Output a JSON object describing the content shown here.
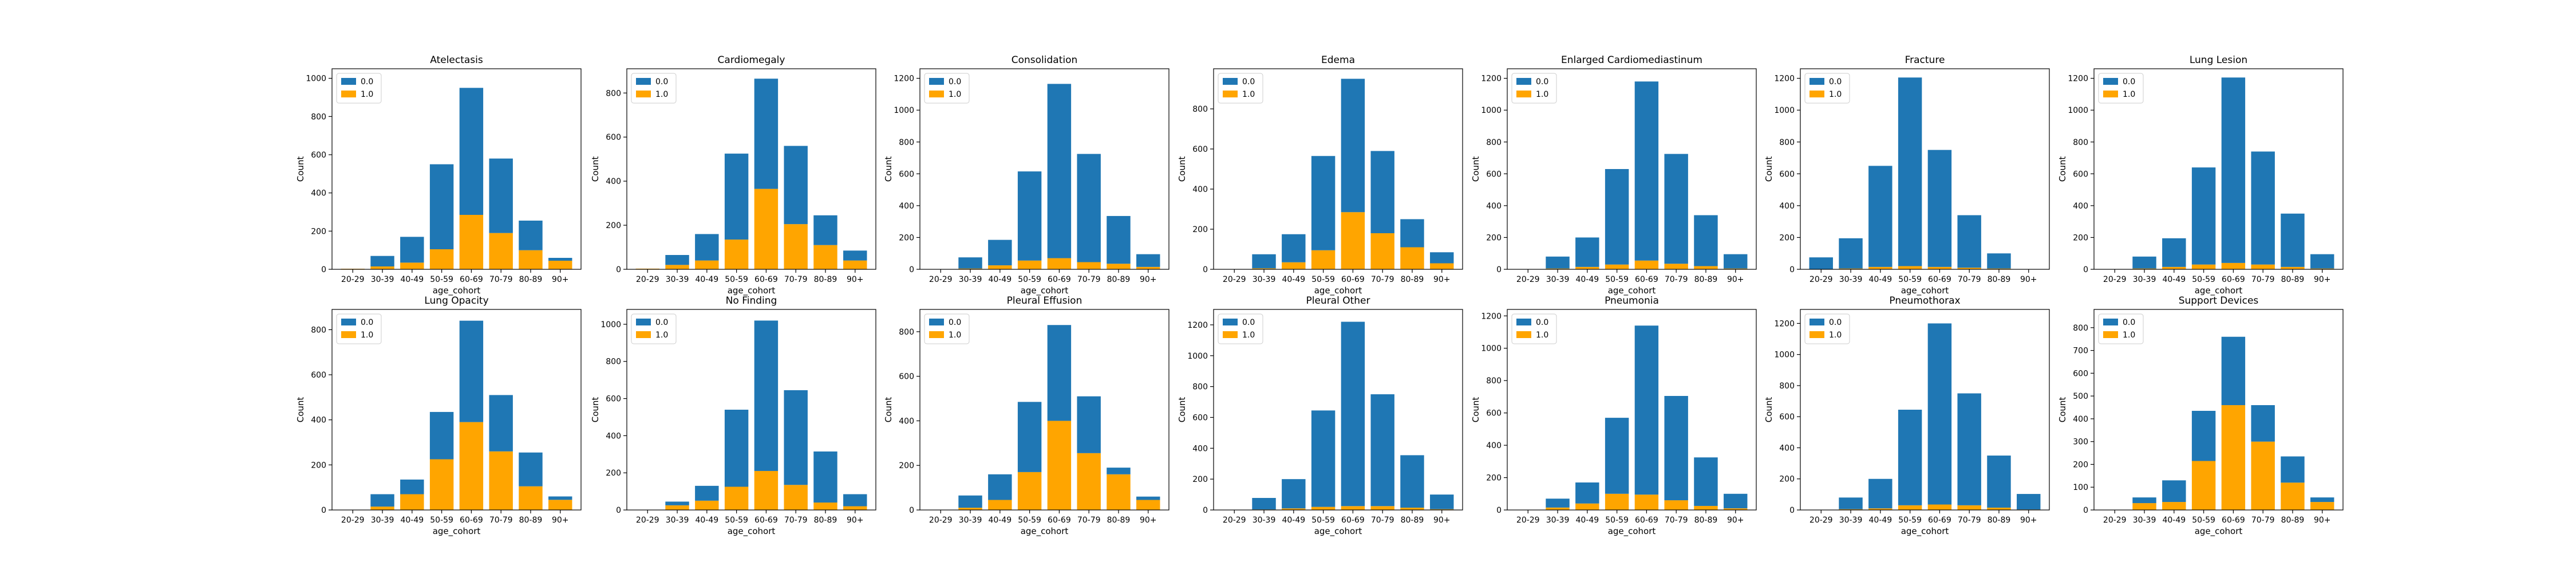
{
  "figure": {
    "xlabel": "age_cohort",
    "ylabel": "Count",
    "legend_labels": [
      "0.0",
      "1.0"
    ],
    "colors": {
      "0.0": "#1f77b4",
      "1.0": "#ffa500"
    }
  },
  "chart_data": [
    {
      "type": "bar",
      "stacked": true,
      "title": "Atelectasis",
      "xlabel": "age_cohort",
      "ylabel": "Count",
      "legend": "top-left",
      "categories": [
        "20-29",
        "30-39",
        "40-49",
        "50-59",
        "60-69",
        "70-79",
        "80-89",
        "90+"
      ],
      "yticks": [
        0,
        200,
        400,
        600,
        800,
        1000
      ],
      "ylim": [
        0,
        1050
      ],
      "series": [
        {
          "name": "0.0",
          "values": [
            0,
            55,
            135,
            445,
            665,
            390,
            155,
            15
          ]
        },
        {
          "name": "1.0",
          "values": [
            3,
            15,
            35,
            105,
            285,
            190,
            100,
            45
          ]
        }
      ]
    },
    {
      "type": "bar",
      "stacked": true,
      "title": "Cardiomegaly",
      "xlabel": "age_cohort",
      "ylabel": "Count",
      "legend": "top-left",
      "categories": [
        "20-29",
        "30-39",
        "40-49",
        "50-59",
        "60-69",
        "70-79",
        "80-89",
        "90+"
      ],
      "yticks": [
        0,
        200,
        400,
        600,
        800
      ],
      "ylim": [
        0,
        910
      ],
      "series": [
        {
          "name": "0.0",
          "values": [
            0,
            45,
            120,
            390,
            500,
            355,
            135,
            45
          ]
        },
        {
          "name": "1.0",
          "values": [
            3,
            20,
            40,
            135,
            365,
            205,
            110,
            40
          ]
        }
      ]
    },
    {
      "type": "bar",
      "stacked": true,
      "title": "Consolidation",
      "xlabel": "age_cohort",
      "ylabel": "Count",
      "legend": "top-left",
      "categories": [
        "20-29",
        "30-39",
        "40-49",
        "50-59",
        "60-69",
        "70-79",
        "80-89",
        "90+"
      ],
      "yticks": [
        0,
        200,
        400,
        600,
        800,
        1000,
        1200
      ],
      "ylim": [
        0,
        1260
      ],
      "series": [
        {
          "name": "0.0",
          "values": [
            0,
            70,
            160,
            560,
            1095,
            680,
            300,
            80
          ]
        },
        {
          "name": "1.0",
          "values": [
            0,
            5,
            25,
            55,
            70,
            45,
            35,
            15
          ]
        }
      ]
    },
    {
      "type": "bar",
      "stacked": true,
      "title": "Edema",
      "xlabel": "age_cohort",
      "ylabel": "Count",
      "legend": "top-left",
      "categories": [
        "20-29",
        "30-39",
        "40-49",
        "50-59",
        "60-69",
        "70-79",
        "80-89",
        "90+"
      ],
      "yticks": [
        0,
        200,
        400,
        600,
        800
      ],
      "ylim": [
        0,
        1000
      ],
      "series": [
        {
          "name": "0.0",
          "values": [
            0,
            70,
            140,
            470,
            665,
            410,
            140,
            55
          ]
        },
        {
          "name": "1.0",
          "values": [
            0,
            5,
            35,
            95,
            285,
            180,
            110,
            30
          ]
        }
      ]
    },
    {
      "type": "bar",
      "stacked": true,
      "title": "Enlarged Cardiomediastinum",
      "xlabel": "age_cohort",
      "ylabel": "Count",
      "legend": "top-left",
      "categories": [
        "20-29",
        "30-39",
        "40-49",
        "50-59",
        "60-69",
        "70-79",
        "80-89",
        "90+"
      ],
      "yticks": [
        0,
        200,
        400,
        600,
        800,
        1000,
        1200
      ],
      "ylim": [
        0,
        1260
      ],
      "series": [
        {
          "name": "0.0",
          "values": [
            0,
            75,
            185,
            600,
            1125,
            690,
            320,
            90
          ]
        },
        {
          "name": "1.0",
          "values": [
            0,
            5,
            15,
            30,
            55,
            35,
            20,
            5
          ]
        }
      ]
    },
    {
      "type": "bar",
      "stacked": true,
      "title": "Fracture",
      "xlabel": "age_cohort",
      "ylabel": "Count",
      "legend": "top-left",
      "categories": [
        "20-29",
        "30-39",
        "40-49",
        "50-59",
        "60-69",
        "70-79",
        "80-89",
        "90+"
      ],
      "yticks": [
        0,
        200,
        400,
        600,
        800,
        1000,
        1200
      ],
      "ylim": [
        0,
        1260
      ],
      "series": [
        {
          "name": "0.0",
          "values": [
            75,
            190,
            635,
            1185,
            735,
            330,
            95,
            0
          ]
        },
        {
          "name": "1.0",
          "values": [
            0,
            5,
            15,
            20,
            15,
            10,
            5,
            0
          ]
        }
      ]
    },
    {
      "type": "bar",
      "stacked": true,
      "title": "Lung Lesion",
      "xlabel": "age_cohort",
      "ylabel": "Count",
      "legend": "top-left",
      "categories": [
        "20-29",
        "30-39",
        "40-49",
        "50-59",
        "60-69",
        "70-79",
        "80-89",
        "90+"
      ],
      "yticks": [
        0,
        200,
        400,
        600,
        800,
        1000,
        1200
      ],
      "ylim": [
        0,
        1260
      ],
      "series": [
        {
          "name": "0.0",
          "values": [
            0,
            75,
            180,
            610,
            1165,
            710,
            335,
            90
          ]
        },
        {
          "name": "1.0",
          "values": [
            0,
            5,
            15,
            30,
            40,
            30,
            15,
            5
          ]
        }
      ]
    },
    {
      "type": "bar",
      "stacked": true,
      "title": "Lung Opacity",
      "xlabel": "age_cohort",
      "ylabel": "Count",
      "legend": "top-left",
      "categories": [
        "20-29",
        "30-39",
        "40-49",
        "50-59",
        "60-69",
        "70-79",
        "80-89",
        "90+"
      ],
      "yticks": [
        0,
        200,
        400,
        600,
        800
      ],
      "ylim": [
        0,
        890
      ],
      "series": [
        {
          "name": "0.0",
          "values": [
            0,
            55,
            65,
            210,
            450,
            250,
            150,
            15
          ]
        },
        {
          "name": "1.0",
          "values": [
            0,
            15,
            70,
            225,
            390,
            260,
            105,
            45
          ]
        }
      ]
    },
    {
      "type": "bar",
      "stacked": true,
      "title": "No Finding",
      "xlabel": "age_cohort",
      "ylabel": "Count",
      "legend": "top-left",
      "categories": [
        "20-29",
        "30-39",
        "40-49",
        "50-59",
        "60-69",
        "70-79",
        "80-89",
        "90+"
      ],
      "yticks": [
        0,
        200,
        400,
        600,
        800,
        1000
      ],
      "ylim": [
        0,
        1080
      ],
      "series": [
        {
          "name": "0.0",
          "values": [
            0,
            20,
            80,
            415,
            810,
            510,
            275,
            65
          ]
        },
        {
          "name": "1.0",
          "values": [
            0,
            25,
            50,
            125,
            210,
            135,
            40,
            20
          ]
        }
      ]
    },
    {
      "type": "bar",
      "stacked": true,
      "title": "Pleural Effusion",
      "xlabel": "age_cohort",
      "ylabel": "Count",
      "legend": "top-left",
      "categories": [
        "20-29",
        "30-39",
        "40-49",
        "50-59",
        "60-69",
        "70-79",
        "80-89",
        "90+"
      ],
      "yticks": [
        0,
        200,
        400,
        600,
        800
      ],
      "ylim": [
        0,
        900
      ],
      "series": [
        {
          "name": "0.0",
          "values": [
            0,
            55,
            115,
            315,
            430,
            255,
            30,
            15
          ]
        },
        {
          "name": "1.0",
          "values": [
            0,
            10,
            45,
            170,
            400,
            255,
            160,
            45
          ]
        }
      ]
    },
    {
      "type": "bar",
      "stacked": true,
      "title": "Pleural Other",
      "xlabel": "age_cohort",
      "ylabel": "Count",
      "legend": "top-left",
      "categories": [
        "20-29",
        "30-39",
        "40-49",
        "50-59",
        "60-69",
        "70-79",
        "80-89",
        "90+"
      ],
      "yticks": [
        0,
        200,
        400,
        600,
        800,
        1000,
        1200
      ],
      "ylim": [
        0,
        1300
      ],
      "series": [
        {
          "name": "0.0",
          "values": [
            0,
            75,
            190,
            625,
            1195,
            725,
            340,
            95
          ]
        },
        {
          "name": "1.0",
          "values": [
            0,
            3,
            10,
            20,
            25,
            25,
            15,
            5
          ]
        }
      ]
    },
    {
      "type": "bar",
      "stacked": true,
      "title": "Pneumonia",
      "xlabel": "age_cohort",
      "ylabel": "Count",
      "legend": "top-left",
      "categories": [
        "20-29",
        "30-39",
        "40-49",
        "50-59",
        "60-69",
        "70-79",
        "80-89",
        "90+"
      ],
      "yticks": [
        0,
        200,
        400,
        600,
        800,
        1000,
        1200
      ],
      "ylim": [
        0,
        1240
      ],
      "series": [
        {
          "name": "0.0",
          "values": [
            0,
            55,
            130,
            470,
            1045,
            645,
            300,
            90
          ]
        },
        {
          "name": "1.0",
          "values": [
            0,
            15,
            40,
            100,
            95,
            60,
            25,
            10
          ]
        }
      ]
    },
    {
      "type": "bar",
      "stacked": true,
      "title": "Pneumothorax",
      "xlabel": "age_cohort",
      "ylabel": "Count",
      "legend": "top-left",
      "categories": [
        "20-29",
        "30-39",
        "40-49",
        "50-59",
        "60-69",
        "70-79",
        "80-89",
        "90+"
      ],
      "yticks": [
        0,
        200,
        400,
        600,
        800,
        1000,
        1200
      ],
      "ylim": [
        0,
        1290
      ],
      "series": [
        {
          "name": "0.0",
          "values": [
            0,
            75,
            190,
            615,
            1165,
            720,
            335,
            100
          ]
        },
        {
          "name": "1.0",
          "values": [
            0,
            5,
            10,
            30,
            35,
            30,
            15,
            3
          ]
        }
      ]
    },
    {
      "type": "bar",
      "stacked": true,
      "title": "Support Devices",
      "xlabel": "age_cohort",
      "ylabel": "Count",
      "legend": "top-left",
      "categories": [
        "20-29",
        "30-39",
        "40-49",
        "50-59",
        "60-69",
        "70-79",
        "80-89",
        "90+"
      ],
      "yticks": [
        0,
        100,
        200,
        300,
        400,
        500,
        600,
        700,
        800
      ],
      "ylim": [
        0,
        880
      ],
      "series": [
        {
          "name": "0.0",
          "values": [
            0,
            25,
            95,
            220,
            300,
            160,
            115,
            20
          ]
        },
        {
          "name": "1.0",
          "values": [
            0,
            30,
            35,
            215,
            460,
            300,
            120,
            35
          ]
        }
      ]
    }
  ]
}
